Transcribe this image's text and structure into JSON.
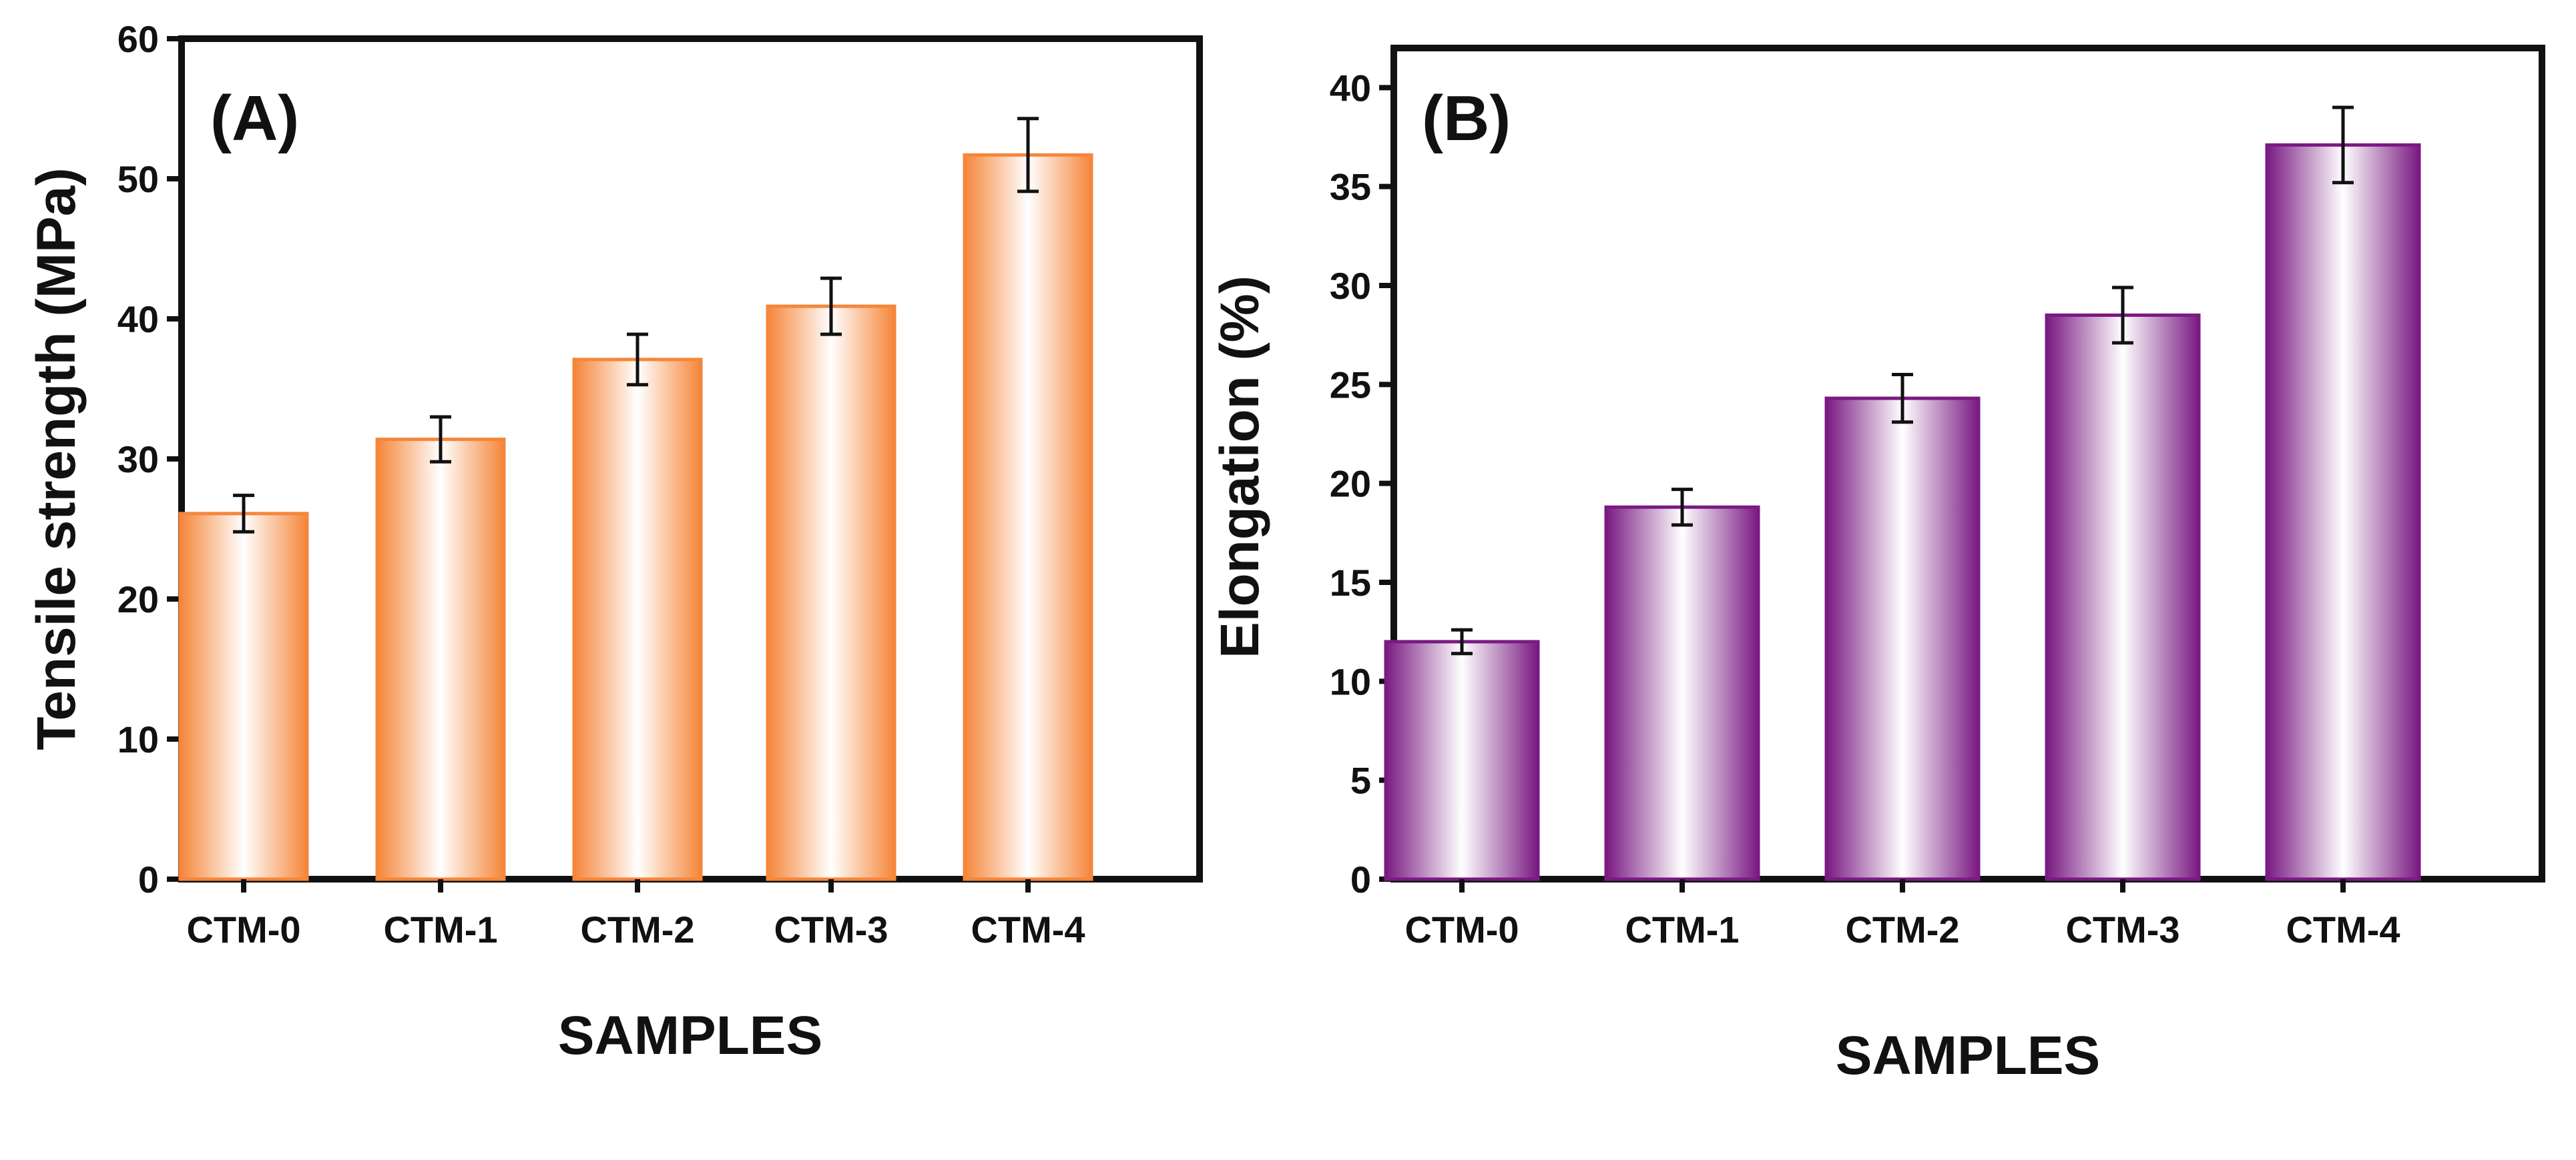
{
  "figure": {
    "panels": [
      "(A)",
      "(B)"
    ]
  },
  "colors": {
    "panel_a": "#f5863a",
    "panel_b": "#7a1a82",
    "axis": "#111111",
    "error_bar": "#111111"
  },
  "chart_data": [
    {
      "type": "bar",
      "panel_label": "(A)",
      "title": "",
      "xlabel": "SAMPLES",
      "ylabel": "Tensile strength (MPa)",
      "categories": [
        "CTM-0",
        "CTM-1",
        "CTM-2",
        "CTM-3",
        "CTM-4"
      ],
      "values": [
        26.1,
        31.4,
        37.1,
        40.9,
        51.7
      ],
      "errors": [
        1.3,
        1.6,
        1.8,
        2.0,
        2.6
      ],
      "ylim": [
        0,
        60
      ],
      "yticks": [
        0,
        10,
        20,
        30,
        40,
        50,
        60
      ],
      "grid": false,
      "color": "#f5863a"
    },
    {
      "type": "bar",
      "panel_label": "(B)",
      "title": "",
      "xlabel": "SAMPLES",
      "ylabel": "Elongation (%)",
      "categories": [
        "CTM-0",
        "CTM-1",
        "CTM-2",
        "CTM-3",
        "CTM-4"
      ],
      "values": [
        12.0,
        18.8,
        24.3,
        28.5,
        37.1
      ],
      "errors": [
        0.6,
        0.9,
        1.2,
        1.4,
        1.9
      ],
      "ylim": [
        0,
        42
      ],
      "yticks": [
        0,
        5,
        10,
        15,
        20,
        25,
        30,
        35,
        40
      ],
      "grid": false,
      "color": "#7a1a82"
    }
  ]
}
